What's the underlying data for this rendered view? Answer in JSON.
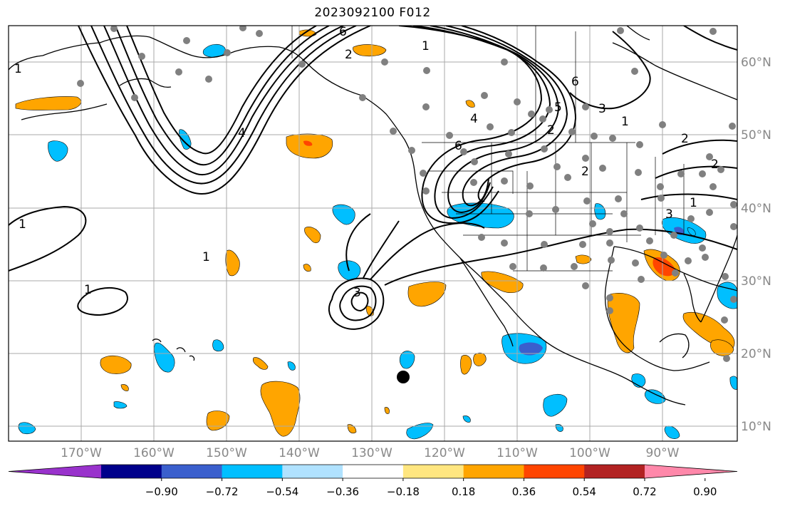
{
  "title": "2023092100 F012",
  "lat_labels": [
    "60°N",
    "50°N",
    "40°N",
    "30°N",
    "20°N",
    "10°N"
  ],
  "lon_labels": [
    "170°W",
    "160°W",
    "150°W",
    "140°W",
    "130°W",
    "120°W",
    "110°W",
    "100°W",
    "90°W"
  ],
  "colorbar": {
    "ticks": [
      "−0.90",
      "−0.72",
      "−0.54",
      "−0.36",
      "−0.18",
      "0.18",
      "0.36",
      "0.54",
      "0.72",
      "0.90"
    ],
    "colors": [
      "#9932cc",
      "#00008b",
      "#3a5fcd",
      "#00bfff",
      "#b0e2ff",
      "#ffffff",
      "#ffe680",
      "#ffa500",
      "#ff4500",
      "#b22222",
      "#ff88aa"
    ]
  },
  "contour_labels": [
    "1",
    "1",
    "1",
    "1",
    "1",
    "2",
    "3",
    "4",
    "6",
    "6",
    "6",
    "2",
    "2",
    "3",
    "5",
    "1",
    "2",
    "2",
    "4",
    "3",
    "1"
  ],
  "colors": {
    "contour": "#000000",
    "grid": "#aaaaaa",
    "obs_marker": "#808080",
    "storm_marker": "#000000"
  },
  "icons": [
    "observation-dot",
    "storm-center-dot"
  ]
}
